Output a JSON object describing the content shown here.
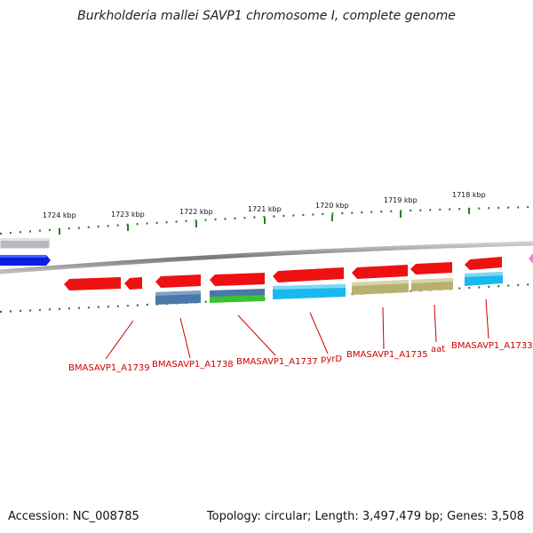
{
  "title": "Burkholderia mallei SAVP1 chromosome I, complete genome",
  "footer": {
    "accession": "Accession: NC_008785",
    "stats": "Topology: circular; Length: 3,497,479 bp; Genes: 3,508"
  },
  "scale": {
    "ticks": [
      "1724 kbp",
      "1723 kbp",
      "1722 kbp",
      "1721 kbp",
      "1720 kbp",
      "1719 kbp",
      "1718 kbp"
    ]
  },
  "genes": [
    "BMASAVP1_A1739",
    "BMASAVP1_A1738",
    "BMASAVP1_A1737",
    "pyrD",
    "BMASAVP1_A1735",
    "aat",
    "BMASAVP1_A1733"
  ],
  "colors": {
    "gene": "#ee1111",
    "label": "#cc0000",
    "backbone": "#888888",
    "tick": "#2a7a2a",
    "blue_feature": "#0b1fe0",
    "gray_feature": "#b8b8c0",
    "steel": "#4a78a8",
    "green": "#39c42f",
    "cyan": "#19b8ee",
    "khaki": "#b8b070",
    "pink": "#ee88cc"
  }
}
